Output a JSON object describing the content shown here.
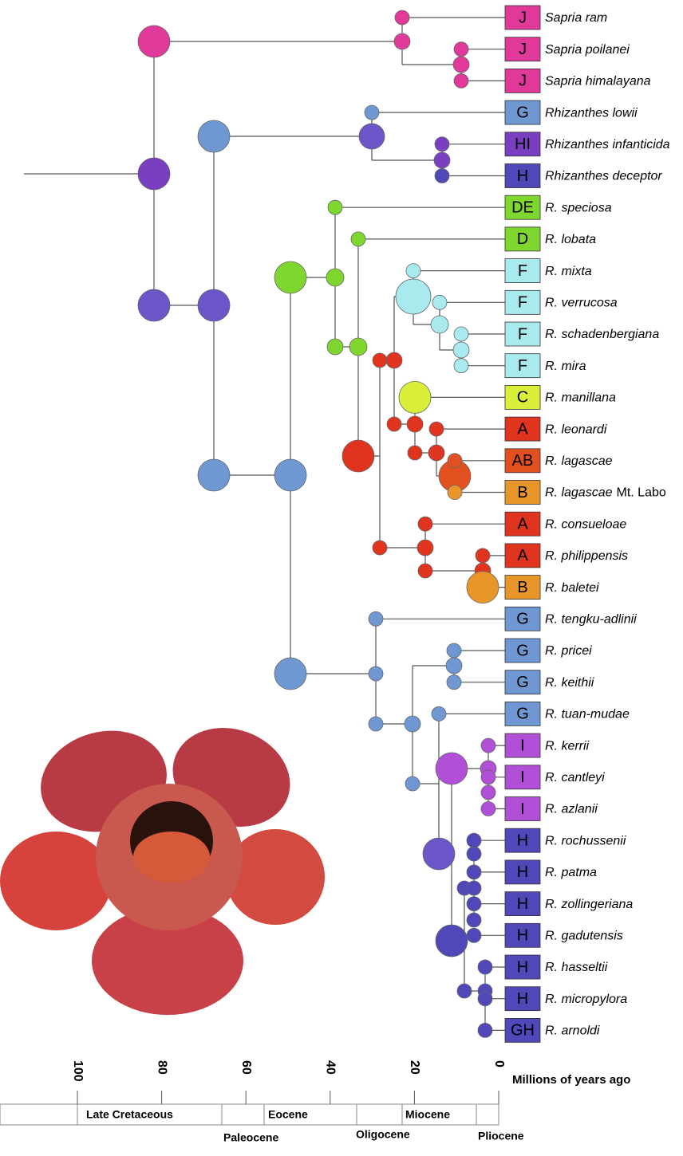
{
  "taxa": [
    {
      "code": "J",
      "name": "Sapria ram"
    },
    {
      "code": "J",
      "name": "Sapria poilanei"
    },
    {
      "code": "J",
      "name": "Sapria himalayana"
    },
    {
      "code": "G",
      "name": "Rhizanthes lowii"
    },
    {
      "code": "HI",
      "name": "Rhizanthes infanticida"
    },
    {
      "code": "H",
      "name": "Rhizanthes deceptor"
    },
    {
      "code": "DE",
      "name": "R. speciosa"
    },
    {
      "code": "D",
      "name": "R. lobata"
    },
    {
      "code": "F",
      "name": "R. mixta"
    },
    {
      "code": "F",
      "name": "R. verrucosa"
    },
    {
      "code": "F",
      "name": "R. schadenbergiana"
    },
    {
      "code": "F",
      "name": "R. mira"
    },
    {
      "code": "C",
      "name": "R. manillana"
    },
    {
      "code": "A",
      "name": "R. leonardi"
    },
    {
      "code": "AB",
      "name": "R. lagascae"
    },
    {
      "code": "B",
      "name": "R. lagascae",
      "locality": "Mt. Labo"
    },
    {
      "code": "A",
      "name": "R. consueloae"
    },
    {
      "code": "A",
      "name": "R. philippensis"
    },
    {
      "code": "B",
      "name": "R. baletei"
    },
    {
      "code": "G",
      "name": "R. tengku-adlinii"
    },
    {
      "code": "G",
      "name": "R. pricei"
    },
    {
      "code": "G",
      "name": "R. keithii"
    },
    {
      "code": "G",
      "name": "R. tuan-mudae"
    },
    {
      "code": "I",
      "name": "R. kerrii"
    },
    {
      "code": "I",
      "name": "R. cantleyi"
    },
    {
      "code": "I",
      "name": "R. azlanii"
    },
    {
      "code": "H",
      "name": "R. rochussenii"
    },
    {
      "code": "H",
      "name": "R. patma"
    },
    {
      "code": "H",
      "name": "R. zollingeriana"
    },
    {
      "code": "H",
      "name": "R. gadutensis"
    },
    {
      "code": "H",
      "name": "R. hasseltii"
    },
    {
      "code": "H",
      "name": "R. micropylora"
    },
    {
      "code": "GH",
      "name": "R. arnoldi"
    }
  ],
  "axis": {
    "label": "Millions of years ago",
    "ticks": [
      100,
      80,
      60,
      40,
      20,
      0
    ]
  },
  "epochs": {
    "late_cretaceous": "Late Cretaceous",
    "paleocene": "Paleocene",
    "eocene": "Eocene",
    "oligocene": "Oligocene",
    "miocene": "Miocene",
    "pliocene": "Pliocene"
  }
}
